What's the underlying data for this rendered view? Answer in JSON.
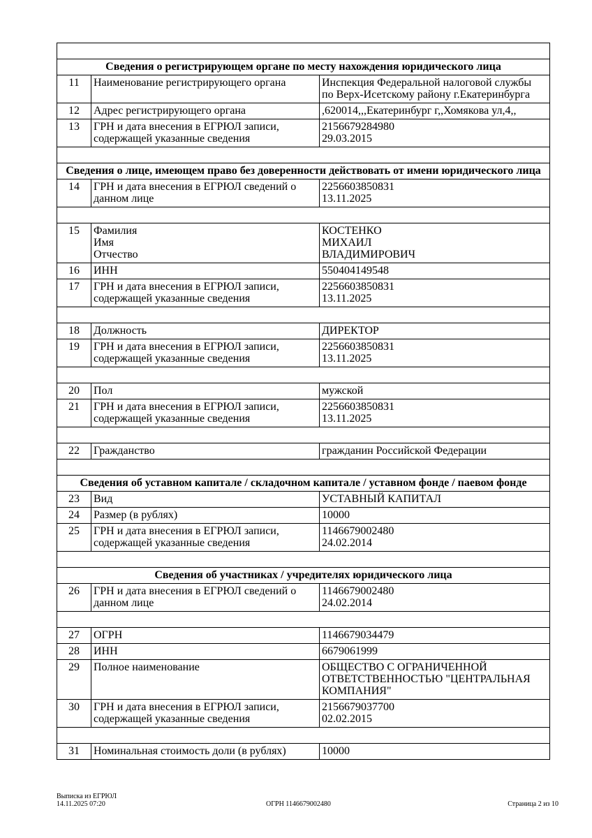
{
  "rows": [
    {
      "type": "empty"
    },
    {
      "type": "header",
      "text": "Сведения о регистрирующем органе по месту нахождения юридического лица"
    },
    {
      "type": "row",
      "num": "11",
      "label": "Наименование регистрирующего органа",
      "value": "Инспекция Федеральной налоговой службы\nпо Верх-Исетскому району г.Екатеринбурга"
    },
    {
      "type": "row",
      "num": "12",
      "label": "Адрес регистрирующего органа",
      "value": ",620014,,,Екатеринбург г,,Хомякова ул,4,,"
    },
    {
      "type": "row",
      "num": "13",
      "label": "ГРН и дата внесения в ЕГРЮЛ записи,\nсодержащей указанные сведения",
      "value": "2156679284980\n29.03.2015"
    },
    {
      "type": "empty"
    },
    {
      "type": "header",
      "text": "Сведения о лице, имеющем право без доверенности действовать от имени юридического лица"
    },
    {
      "type": "row",
      "num": "14",
      "label": "ГРН и дата внесения в ЕГРЮЛ сведений о\nданном лице",
      "value": "2256603850831\n13.11.2025"
    },
    {
      "type": "empty"
    },
    {
      "type": "row",
      "num": "15",
      "label": "Фамилия\nИмя\nОтчество",
      "value": "КОСТЕНКО\nМИХАИЛ\nВЛАДИМИРОВИЧ"
    },
    {
      "type": "row",
      "num": "16",
      "label": "ИНН",
      "value": "550404149548"
    },
    {
      "type": "row",
      "num": "17",
      "label": "ГРН и дата внесения в ЕГРЮЛ записи,\nсодержащей указанные сведения",
      "value": "2256603850831\n13.11.2025"
    },
    {
      "type": "empty"
    },
    {
      "type": "row",
      "num": "18",
      "label": "Должность",
      "value": "ДИРЕКТОР"
    },
    {
      "type": "row",
      "num": "19",
      "label": "ГРН и дата внесения в ЕГРЮЛ записи,\nсодержащей указанные сведения",
      "value": "2256603850831\n13.11.2025"
    },
    {
      "type": "empty"
    },
    {
      "type": "row",
      "num": "20",
      "label": "Пол",
      "value": "мужской"
    },
    {
      "type": "row",
      "num": "21",
      "label": "ГРН и дата внесения в ЕГРЮЛ записи,\nсодержащей указанные сведения",
      "value": "2256603850831\n13.11.2025"
    },
    {
      "type": "empty"
    },
    {
      "type": "row",
      "num": "22",
      "label": "Гражданство",
      "value": "гражданин Российской Федерации"
    },
    {
      "type": "empty"
    },
    {
      "type": "header",
      "text": "Сведения об уставном капитале / складочном капитале / уставном фонде / паевом фонде"
    },
    {
      "type": "row",
      "num": "23",
      "label": "Вид",
      "value": "УСТАВНЫЙ КАПИТАЛ"
    },
    {
      "type": "row",
      "num": "24",
      "label": "Размер (в рублях)",
      "value": "10000"
    },
    {
      "type": "row",
      "num": "25",
      "label": "ГРН и дата внесения в ЕГРЮЛ записи,\nсодержащей указанные сведения",
      "value": "1146679002480\n24.02.2014"
    },
    {
      "type": "empty"
    },
    {
      "type": "header",
      "text": "Сведения об участниках / учредителях юридического лица"
    },
    {
      "type": "row",
      "num": "26",
      "label": "ГРН и дата внесения в ЕГРЮЛ сведений о\nданном лице",
      "value": "1146679002480\n24.02.2014"
    },
    {
      "type": "empty"
    },
    {
      "type": "row",
      "num": "27",
      "label": "ОГРН",
      "value": "1146679034479"
    },
    {
      "type": "row",
      "num": "28",
      "label": "ИНН",
      "value": "6679061999"
    },
    {
      "type": "row",
      "num": "29",
      "label": "Полное наименование",
      "value": "ОБЩЕСТВО С ОГРАНИЧЕННОЙ\nОТВЕТСТВЕННОСТЬЮ \"ЦЕНТРАЛЬНАЯ\nКОМПАНИЯ\""
    },
    {
      "type": "row",
      "num": "30",
      "label": "ГРН и дата внесения в ЕГРЮЛ записи,\nсодержащей указанные сведения",
      "value": "2156679037700\n02.02.2015"
    },
    {
      "type": "empty"
    },
    {
      "type": "row",
      "num": "31",
      "label": "Номинальная стоимость доли (в рублях)",
      "value": "10000"
    }
  ],
  "footer": {
    "doc_title": "Выписка из ЕГРЮЛ",
    "datetime": "14.11.2025 07:20",
    "ogrn": "ОГРН 1146679002480",
    "page": "Страница 2 из 10"
  }
}
